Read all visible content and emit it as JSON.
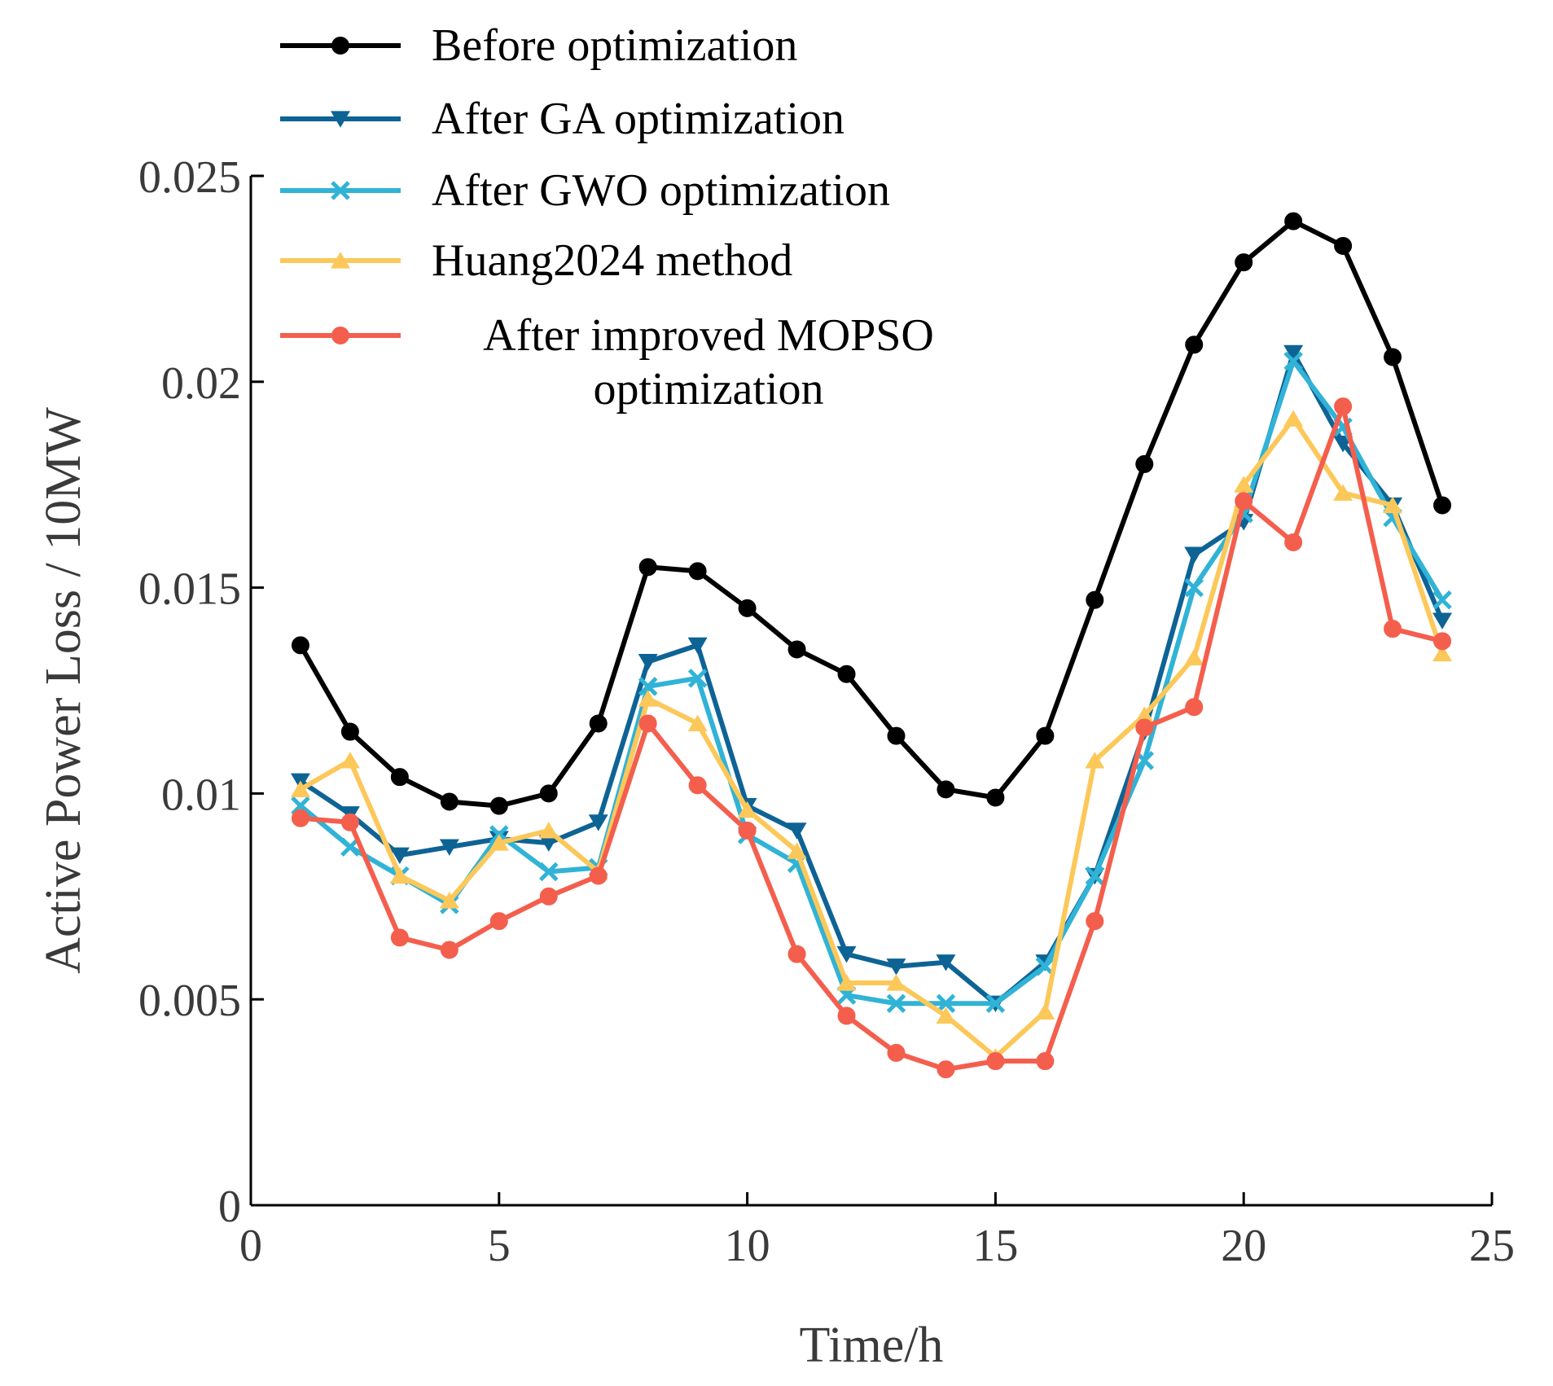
{
  "chart_data": {
    "type": "line",
    "title": "",
    "xlabel": "Time/h",
    "ylabel": "Active Power Loss / 10MW",
    "xlim": [
      0,
      25
    ],
    "ylim": [
      0,
      0.025
    ],
    "xticks": [
      0,
      5,
      10,
      15,
      20,
      25
    ],
    "xtick_labels": [
      "0",
      "5",
      "10",
      "15",
      "20",
      "25"
    ],
    "yticks": [
      0,
      0.005,
      0.01,
      0.015,
      0.02,
      0.025
    ],
    "ytick_labels": [
      "0",
      "0.005",
      "0.01",
      "0.015",
      "0.02",
      "0.025"
    ],
    "grid": false,
    "legend_position": "top-left",
    "x": [
      1,
      2,
      3,
      4,
      5,
      6,
      7,
      8,
      9,
      10,
      11,
      12,
      13,
      14,
      15,
      16,
      17,
      18,
      19,
      20,
      21,
      22,
      23,
      24
    ],
    "series": [
      {
        "name": "Before optimization",
        "color": "#000000",
        "marker": "circle",
        "values": [
          0.0136,
          0.0115,
          0.0104,
          0.0098,
          0.0097,
          0.01,
          0.0117,
          0.0155,
          0.0154,
          0.0145,
          0.0135,
          0.0129,
          0.0114,
          0.0101,
          0.0099,
          0.0114,
          0.0147,
          0.018,
          0.0209,
          0.0229,
          0.0239,
          0.0233,
          0.0206,
          0.017
        ]
      },
      {
        "name": "After GA optimization",
        "color": "#0e6395",
        "marker": "triangle-down",
        "values": [
          0.0103,
          0.0095,
          0.0085,
          0.0087,
          0.0089,
          0.0088,
          0.0093,
          0.0132,
          0.0136,
          0.0097,
          0.0091,
          0.0061,
          0.0058,
          0.0059,
          0.0049,
          0.0059,
          0.008,
          0.0115,
          0.0158,
          0.0166,
          0.0207,
          0.0185,
          0.017,
          0.0142
        ]
      },
      {
        "name": "After GWO optimization",
        "color": "#30b3d6",
        "marker": "x",
        "values": [
          0.0097,
          0.0087,
          0.008,
          0.0073,
          0.009,
          0.0081,
          0.0082,
          0.0126,
          0.0128,
          0.009,
          0.0083,
          0.0051,
          0.0049,
          0.0049,
          0.0049,
          0.0058,
          0.008,
          0.0108,
          0.015,
          0.0168,
          0.0205,
          0.0189,
          0.0167,
          0.0147
        ]
      },
      {
        "name": "Huang2024 method",
        "color": "#fcc85a",
        "marker": "triangle-up",
        "values": [
          0.0101,
          0.0108,
          0.008,
          0.0074,
          0.0088,
          0.0091,
          0.0081,
          0.0123,
          0.0117,
          0.0096,
          0.0086,
          0.0054,
          0.0054,
          0.0046,
          0.0036,
          0.0047,
          0.0108,
          0.0119,
          0.0133,
          0.0175,
          0.0191,
          0.0173,
          0.017,
          0.0134
        ]
      },
      {
        "name": "After improved MOPSO optimization",
        "name_line1": "After improved MOPSO",
        "name_line2": "optimization",
        "color": "#f45e4d",
        "marker": "circle",
        "values": [
          0.0094,
          0.0093,
          0.0065,
          0.0062,
          0.0069,
          0.0075,
          0.008,
          0.0117,
          0.0102,
          0.0091,
          0.0061,
          0.0046,
          0.0037,
          0.0033,
          0.0035,
          0.0035,
          0.0069,
          0.0116,
          0.0121,
          0.0171,
          0.0161,
          0.0194,
          0.014,
          0.0137
        ]
      }
    ]
  }
}
